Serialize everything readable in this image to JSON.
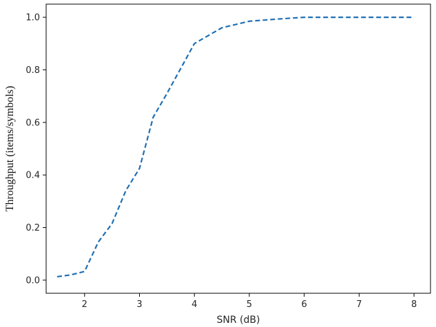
{
  "chart_data": {
    "type": "line",
    "title": "",
    "xlabel": "SNR (dB)",
    "ylabel": "Throughput  (items/symbols)",
    "xlim": [
      1.3,
      8.3
    ],
    "ylim": [
      -0.05,
      1.05
    ],
    "x_ticks": [
      2,
      3,
      4,
      5,
      6,
      7,
      8
    ],
    "y_ticks": [
      0.0,
      0.2,
      0.4,
      0.6,
      0.8,
      1.0
    ],
    "x_tick_labels": [
      "2",
      "3",
      "4",
      "5",
      "6",
      "7",
      "8"
    ],
    "y_tick_labels": [
      "0.0",
      "0.2",
      "0.4",
      "0.6",
      "0.8",
      "1.0"
    ],
    "grid": false,
    "legend": "none",
    "series": [
      {
        "color": "#1f6fb4",
        "line_style": "dashed",
        "x": [
          1.5,
          1.75,
          2.0,
          2.25,
          2.5,
          2.75,
          3.0,
          3.25,
          3.5,
          3.75,
          4.0,
          4.5,
          5.0,
          5.5,
          6.0,
          7.0,
          8.0
        ],
        "y": [
          0.013,
          0.02,
          0.033,
          0.145,
          0.215,
          0.34,
          0.425,
          0.62,
          0.71,
          0.805,
          0.9,
          0.96,
          0.985,
          0.993,
          1.0,
          1.0,
          1.0
        ]
      }
    ]
  }
}
